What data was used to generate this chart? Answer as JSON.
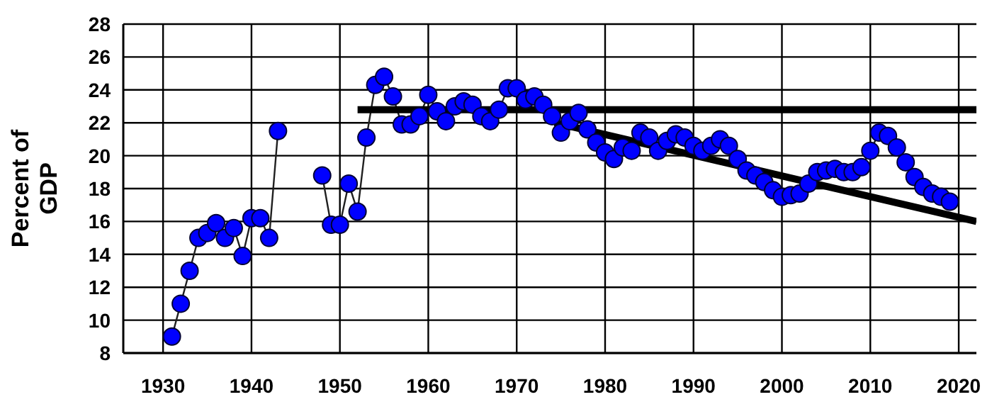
{
  "chart_data": {
    "type": "line",
    "ylabel": "Percent of GDP",
    "xlim": [
      1925.5,
      2022
    ],
    "xticks": [
      1930,
      1940,
      1950,
      1960,
      1970,
      1980,
      1990,
      2000,
      2010,
      2020
    ],
    "ylim": [
      8,
      28
    ],
    "yticks": [
      8,
      10,
      12,
      14,
      16,
      18,
      20,
      22,
      24,
      26,
      28
    ],
    "grid": true,
    "marker": "circle",
    "line_style": "solid",
    "series": [
      {
        "color": "#0000ff",
        "x": [
          1931,
          1932,
          1933,
          1934,
          1935,
          1936,
          1937,
          1938,
          1939,
          1940,
          1941,
          1942,
          1943,
          1944,
          1945,
          1946,
          1947,
          1948,
          1949,
          1950,
          1951,
          1952,
          1953,
          1954,
          1955,
          1956,
          1957,
          1958,
          1959,
          1960,
          1961,
          1962,
          1963,
          1964,
          1965,
          1966,
          1967,
          1968,
          1969,
          1970,
          1971,
          1972,
          1973,
          1974,
          1975,
          1976,
          1977,
          1978,
          1979,
          1980,
          1981,
          1982,
          1983,
          1984,
          1985,
          1986,
          1987,
          1988,
          1989,
          1990,
          1991,
          1992,
          1993,
          1994,
          1995,
          1996,
          1997,
          1998,
          1999,
          2000,
          2001,
          2002,
          2003,
          2004,
          2005,
          2006,
          2007,
          2008,
          2009,
          2010,
          2011,
          2012,
          2013,
          2014,
          2015,
          2016,
          2017,
          2018,
          2019
        ],
        "values": [
          9.0,
          11.0,
          13.0,
          15.0,
          15.3,
          15.9,
          15.0,
          15.6,
          13.9,
          16.2,
          16.2,
          15.0,
          21.5,
          null,
          null,
          null,
          null,
          18.8,
          15.8,
          15.8,
          18.3,
          16.6,
          21.1,
          24.3,
          24.8,
          23.6,
          21.9,
          21.9,
          22.4,
          23.7,
          22.7,
          22.1,
          23.0,
          23.3,
          23.1,
          22.4,
          22.1,
          22.8,
          24.1,
          24.1,
          23.4,
          23.6,
          23.1,
          22.4,
          21.4,
          22.1,
          22.6,
          21.6,
          20.8,
          20.2,
          19.8,
          20.5,
          20.3,
          21.4,
          21.1,
          20.3,
          20.9,
          21.3,
          21.1,
          20.6,
          20.3,
          20.6,
          21.0,
          20.6,
          19.8,
          19.1,
          18.8,
          18.4,
          17.9,
          17.5,
          17.6,
          17.7,
          18.3,
          19.0,
          19.1,
          19.2,
          19.0,
          19.0,
          19.3,
          20.3,
          21.4,
          21.2,
          20.5,
          19.6,
          18.7,
          18.1,
          17.7,
          17.5,
          17.2
        ]
      },
      {
        "color": "#000000",
        "marker": "none",
        "x": [
          1952,
          2022
        ],
        "values": [
          22.8,
          22.8
        ]
      },
      {
        "color": "#000000",
        "marker": "none",
        "x": [
          1974.3,
          2022
        ],
        "values": [
          22.0,
          16.0
        ]
      }
    ]
  }
}
